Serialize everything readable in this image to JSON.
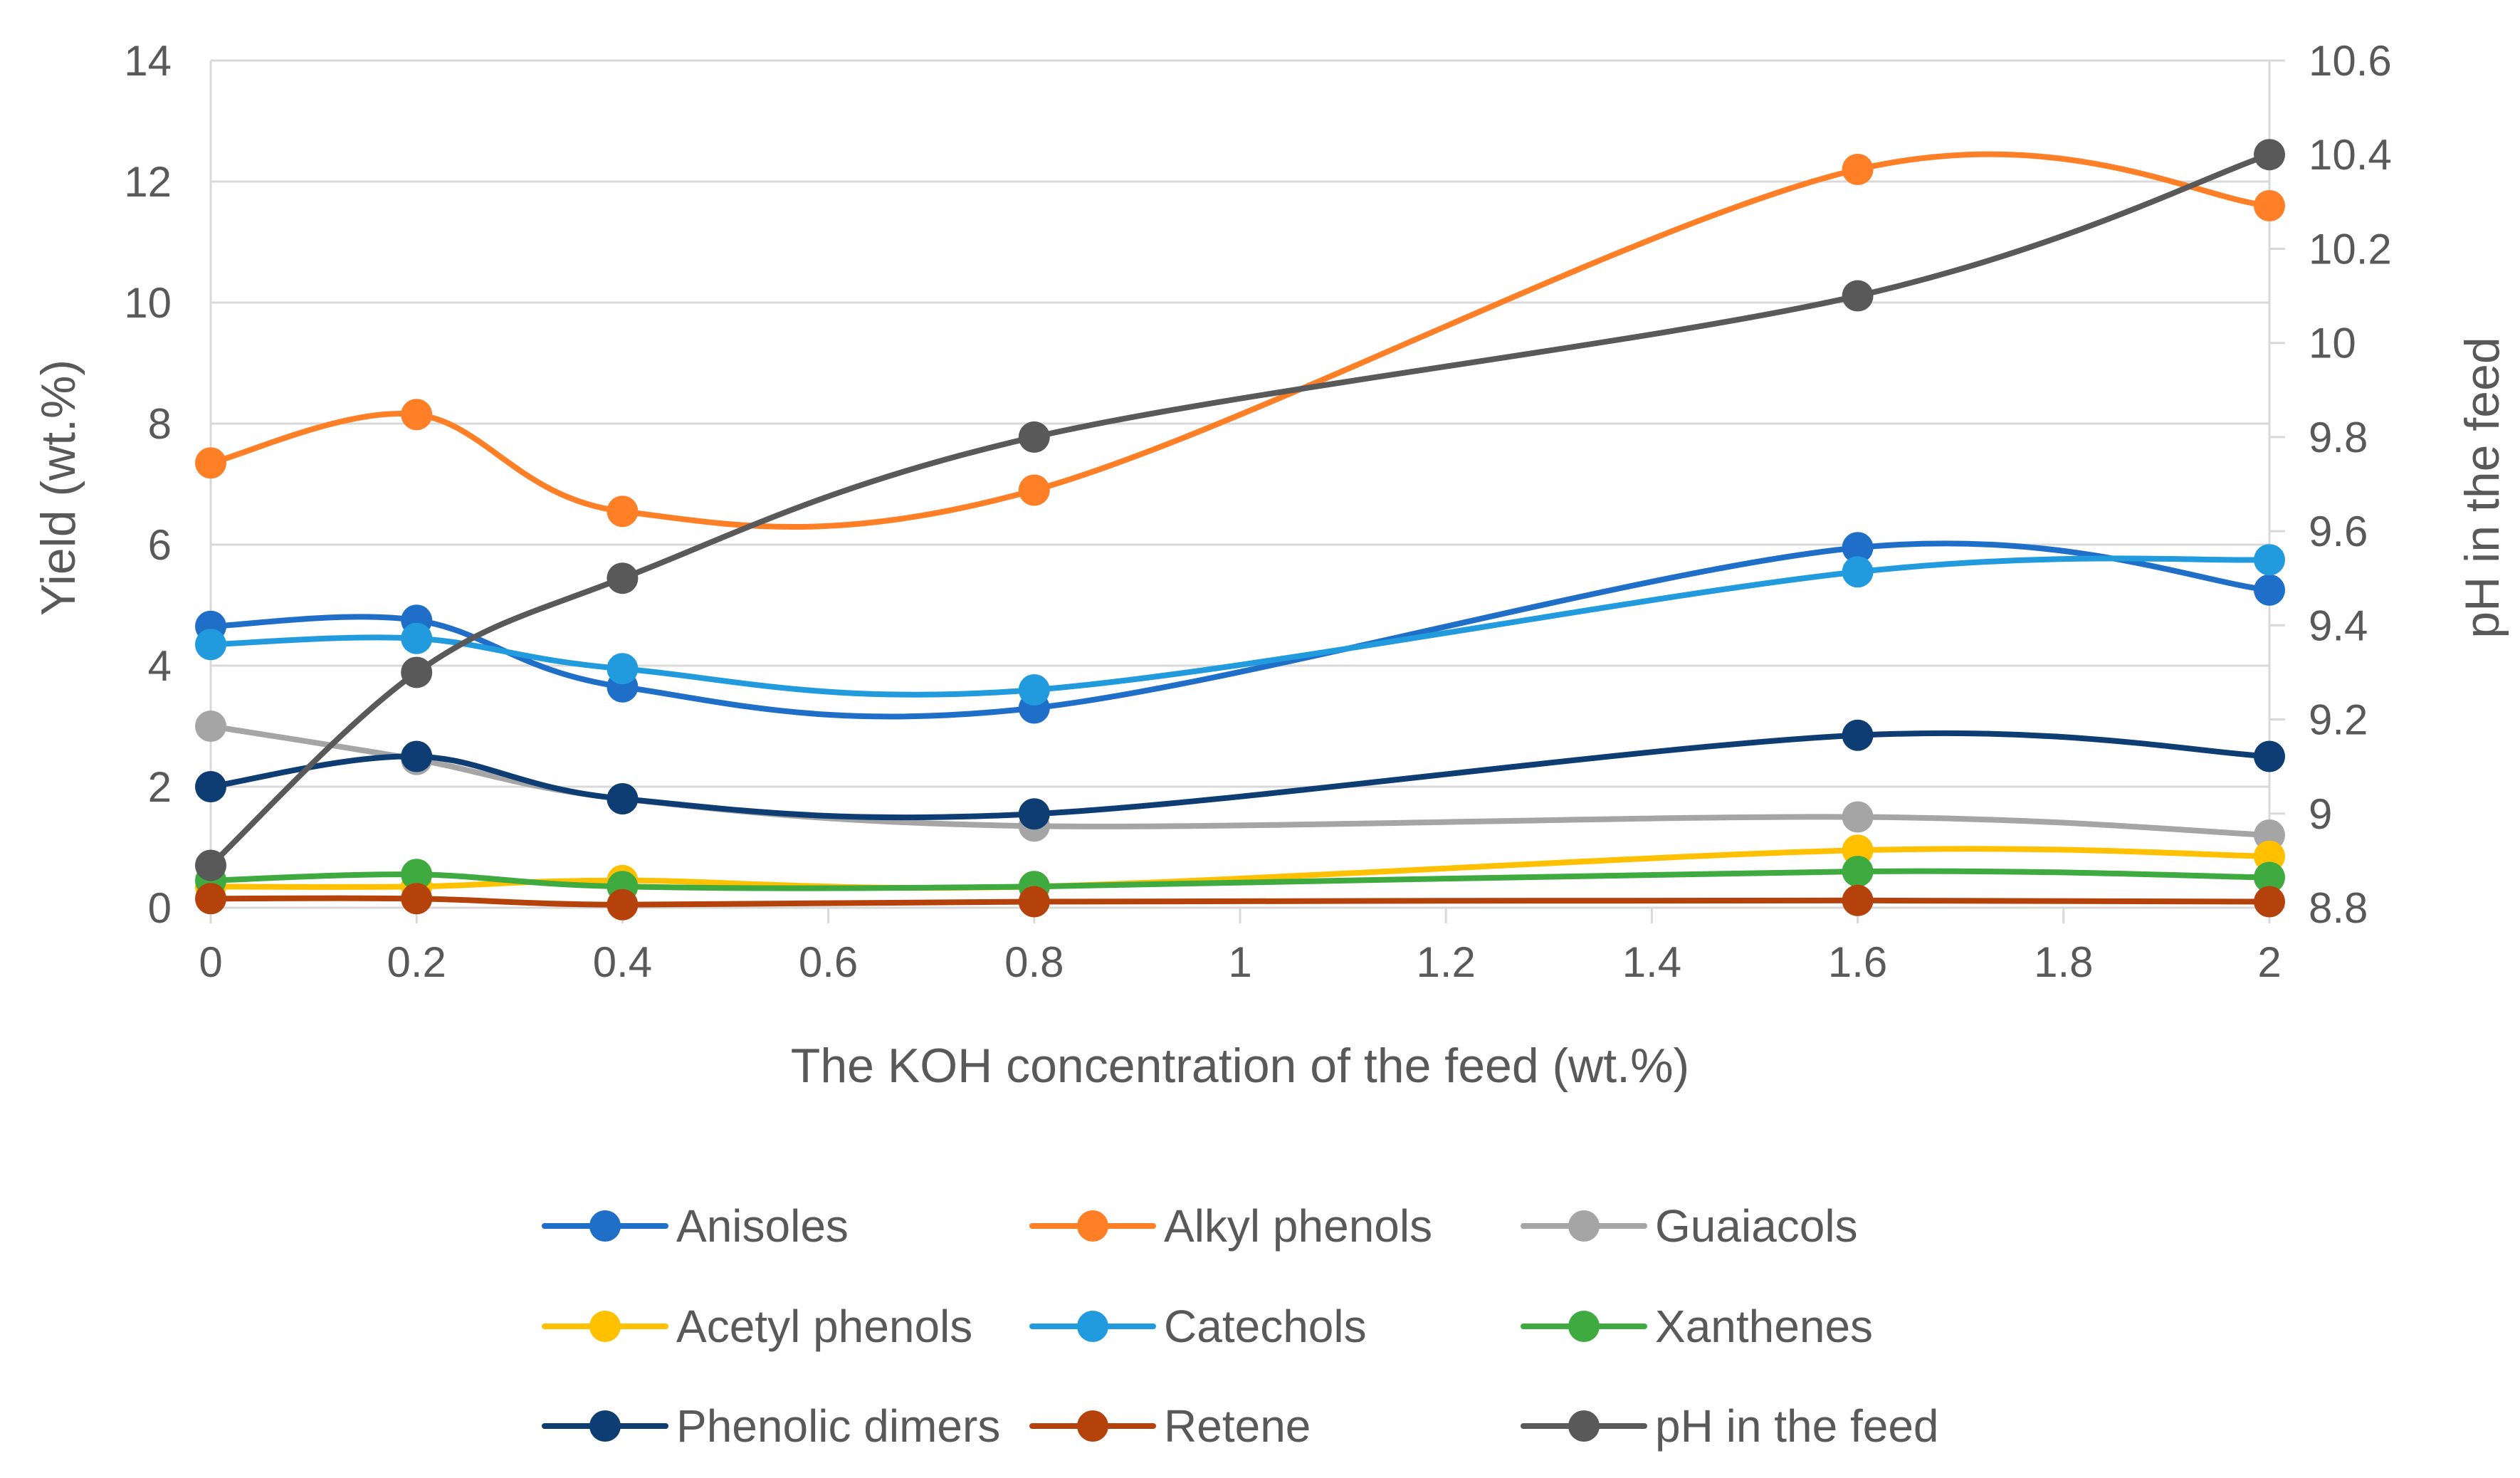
{
  "chart_data": {
    "type": "line",
    "smooth": true,
    "grid": true,
    "legend_position": "bottom",
    "title": "",
    "xlabel": "The KOH concentration of the feed (wt.%)",
    "ylabel": "Yield (wt.%)",
    "y2label": "pH in the feed",
    "xlim": [
      0,
      2
    ],
    "ylim": [
      0,
      14
    ],
    "y2lim": [
      8.8,
      10.6
    ],
    "x_ticks": [
      "0",
      "0.2",
      "0.4",
      "0.6",
      "0.8",
      "1",
      "1.2",
      "1.4",
      "1.6",
      "1.8",
      "2"
    ],
    "y_ticks": [
      "0",
      "2",
      "4",
      "6",
      "8",
      "10",
      "12",
      "14"
    ],
    "y2_ticks": [
      "8.8",
      "9",
      "9.2",
      "9.4",
      "9.6",
      "9.8",
      "10",
      "10.2",
      "10.4",
      "10.6"
    ],
    "x": [
      0,
      0.2,
      0.4,
      0.8,
      1.6,
      2
    ],
    "series": [
      {
        "name": "Anisoles",
        "color": "#1F6FC9",
        "axis": "left",
        "values": [
          4.65,
          4.75,
          3.65,
          3.3,
          5.95,
          5.25
        ]
      },
      {
        "name": "Alkyl phenols",
        "color": "#FF7F27",
        "axis": "left",
        "values": [
          7.35,
          8.15,
          6.55,
          6.9,
          12.2,
          11.6
        ]
      },
      {
        "name": "Guaiacols",
        "color": "#A5A5A5",
        "axis": "left",
        "values": [
          3.0,
          2.45,
          1.8,
          1.35,
          1.5,
          1.2
        ]
      },
      {
        "name": "Acetyl phenols",
        "color": "#FFC000",
        "axis": "left",
        "values": [
          0.35,
          0.35,
          0.45,
          0.35,
          0.95,
          0.85
        ]
      },
      {
        "name": "Catechols",
        "color": "#219BDD",
        "axis": "left",
        "values": [
          4.35,
          4.45,
          3.95,
          3.6,
          5.55,
          5.75
        ]
      },
      {
        "name": "Xanthenes",
        "color": "#3FAA40",
        "axis": "left",
        "values": [
          0.45,
          0.55,
          0.35,
          0.35,
          0.6,
          0.5
        ]
      },
      {
        "name": "Phenolic dimers",
        "color": "#0E3D73",
        "axis": "left",
        "values": [
          2.0,
          2.5,
          1.8,
          1.55,
          2.85,
          2.5
        ]
      },
      {
        "name": "Retene",
        "color": "#B5420A",
        "axis": "left",
        "values": [
          0.15,
          0.15,
          0.05,
          0.1,
          0.12,
          0.1
        ]
      },
      {
        "name": "pH in the feed",
        "color": "#595959",
        "axis": "right",
        "values": [
          8.89,
          9.3,
          9.5,
          9.8,
          10.1,
          10.4
        ]
      }
    ]
  }
}
